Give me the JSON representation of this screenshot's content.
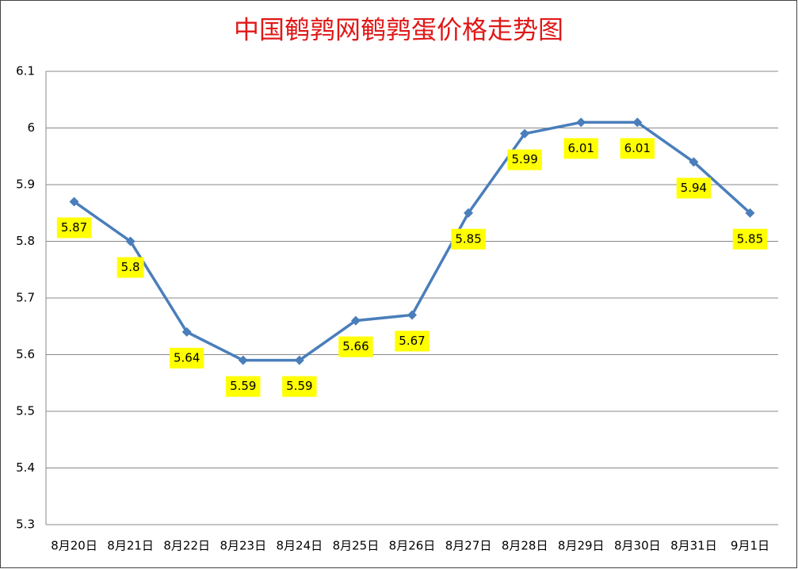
{
  "chart_data": {
    "type": "line",
    "title": "中国鹌鹑网鹌鹑蛋价格走势图",
    "categories": [
      "8月20日",
      "8月21日",
      "8月22日",
      "8月23日",
      "8月24日",
      "8月25日",
      "8月26日",
      "8月27日",
      "8月28日",
      "8月29日",
      "8月30日",
      "8月31日",
      "9月1日"
    ],
    "values": [
      5.87,
      5.8,
      5.64,
      5.59,
      5.59,
      5.66,
      5.67,
      5.85,
      5.99,
      6.01,
      6.01,
      5.94,
      5.85
    ],
    "color": "#4a7ebb",
    "ylim": [
      5.3,
      6.1
    ],
    "yticks": [
      5.3,
      5.4,
      5.5,
      5.6,
      5.7,
      5.8,
      5.9,
      6,
      6.1
    ],
    "grid": true
  }
}
